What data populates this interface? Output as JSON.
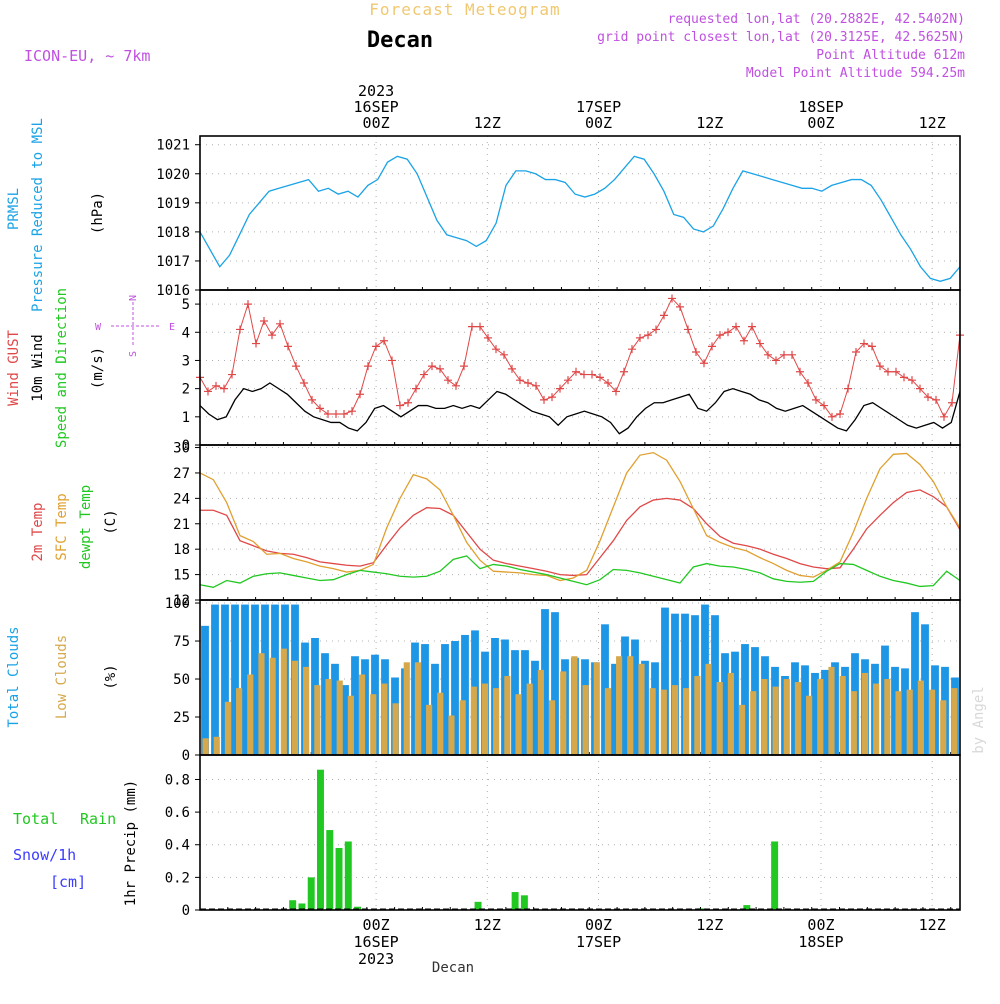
{
  "header": {
    "title": "Forecast Meteogram",
    "location": "Decan",
    "model": "ICON-EU, ~ 7km",
    "requested": "requested lon,lat (20.2882E, 42.5402N)",
    "gridpoint": "grid point closest lon,lat (20.3125E, 42.5625N)",
    "point_alt": "Point Altitude 612m",
    "model_alt": "Model Point Altitude 594.25m",
    "bottom_label": "Decan",
    "credit": "by Angel"
  },
  "colors": {
    "pressure": "#1aa3e6",
    "gust": "#e04848",
    "wind": "#000000",
    "temp2m": "#e04848",
    "sfc": "#e0a030",
    "dew": "#22c822",
    "total_cloud": "#1e96e6",
    "low_cloud": "#d6a84c",
    "rain": "#22c822",
    "snow": "#3c3cff",
    "purple": "#c050e0"
  },
  "chart_data": {
    "type": "meteogram",
    "time": {
      "start_hour": -19,
      "end_hour": 63,
      "step_hours": 1,
      "top_ticks": [
        {
          "hour": 0,
          "lines": [
            "2023",
            "16SEP",
            "00Z"
          ]
        },
        {
          "hour": 12,
          "lines": [
            "12Z"
          ]
        },
        {
          "hour": 24,
          "lines": [
            "17SEP",
            "00Z"
          ]
        },
        {
          "hour": 36,
          "lines": [
            "12Z"
          ]
        },
        {
          "hour": 48,
          "lines": [
            "18SEP",
            "00Z"
          ]
        },
        {
          "hour": 60,
          "lines": [
            "12Z"
          ]
        }
      ],
      "bottom_ticks": [
        {
          "hour": 0,
          "lines": [
            "00Z",
            "16SEP",
            "2023"
          ]
        },
        {
          "hour": 12,
          "lines": [
            "12Z"
          ]
        },
        {
          "hour": 24,
          "lines": [
            "00Z",
            "17SEP"
          ]
        },
        {
          "hour": 36,
          "lines": [
            "12Z"
          ]
        },
        {
          "hour": 48,
          "lines": [
            "00Z",
            "18SEP"
          ]
        },
        {
          "hour": 60,
          "lines": [
            "12Z"
          ]
        }
      ]
    },
    "panels": [
      {
        "id": "pressure",
        "type": "line",
        "labels": [
          "PRMSL",
          "Pressure Reduced to MSL"
        ],
        "unit": "(hPa)",
        "ylim": [
          1016,
          1021.3
        ],
        "yticks": [
          1016,
          1017,
          1018,
          1019,
          1020,
          1021
        ],
        "series": [
          {
            "values": [
              1018.0,
              1017.4,
              1016.8,
              1017.2,
              1017.9,
              1018.6,
              1019.0,
              1019.4,
              1019.5,
              1019.6,
              1019.7,
              1019.8,
              1019.4,
              1019.5,
              1019.3,
              1019.4,
              1019.2,
              1019.6,
              1019.8,
              1020.4,
              1020.6,
              1020.5,
              1020.0,
              1019.2,
              1018.4,
              1017.9,
              1017.8,
              1017.7,
              1017.5,
              1017.7,
              1018.3,
              1019.6,
              1020.1,
              1020.1,
              1020.0,
              1019.8,
              1019.8,
              1019.7,
              1019.3,
              1019.2,
              1019.3,
              1019.5,
              1019.8,
              1020.2,
              1020.6,
              1020.5,
              1020.0,
              1019.4,
              1018.6,
              1018.5,
              1018.1,
              1018.0,
              1018.2,
              1018.8,
              1019.5,
              1020.1,
              1020.0,
              1019.9,
              1019.8,
              1019.7,
              1019.6,
              1019.5,
              1019.5,
              1019.4,
              1019.6,
              1019.7,
              1019.8,
              1019.8,
              1019.6,
              1019.1,
              1018.5,
              1017.9,
              1017.4,
              1016.8,
              1016.4,
              1016.3,
              1016.4,
              1016.8
            ]
          }
        ]
      },
      {
        "id": "wind",
        "type": "line",
        "labels": [
          "Wind GUST",
          "10m Wind",
          "Speed and Direction"
        ],
        "unit": "(m/s)",
        "compass": {
          "n": "N",
          "s": "S",
          "w": "W",
          "e": "E"
        },
        "ylim": [
          0,
          5.5
        ],
        "yticks": [
          0,
          1,
          2,
          3,
          4,
          5
        ],
        "series": [
          {
            "name": "Wind GUST",
            "marker": "+",
            "values": [
              2.4,
              1.9,
              2.1,
              2.0,
              2.5,
              4.1,
              5.0,
              3.6,
              4.4,
              3.9,
              4.3,
              3.5,
              2.8,
              2.2,
              1.6,
              1.3,
              1.1,
              1.1,
              1.1,
              1.2,
              1.8,
              2.8,
              3.5,
              3.7,
              3.0,
              1.4,
              1.5,
              2.0,
              2.5,
              2.8,
              2.7,
              2.3,
              2.1,
              2.8,
              4.2,
              4.2,
              3.8,
              3.4,
              3.2,
              2.7,
              2.3,
              2.2,
              2.1,
              1.6,
              1.7,
              2.0,
              2.3,
              2.6,
              2.5,
              2.5,
              2.4,
              2.2,
              1.9,
              2.6,
              3.4,
              3.8,
              3.9,
              4.1,
              4.6,
              5.2,
              4.9,
              4.1,
              3.3,
              2.9,
              3.5,
              3.9,
              4.0,
              4.2,
              3.7,
              4.2,
              3.6,
              3.2,
              3.0,
              3.2,
              3.2,
              2.6,
              2.2,
              1.6,
              1.4,
              1.0,
              1.1,
              2.0,
              3.3,
              3.6,
              3.5,
              2.8,
              2.6,
              2.6,
              2.4,
              2.3,
              2.0,
              1.7,
              1.6,
              1.0,
              1.5,
              3.9
            ]
          },
          {
            "name": "10m Wind",
            "values": [
              1.4,
              1.1,
              0.9,
              1.0,
              1.6,
              2.0,
              1.9,
              2.0,
              2.2,
              2.0,
              1.8,
              1.5,
              1.2,
              1.0,
              0.9,
              0.8,
              0.8,
              0.6,
              0.5,
              0.8,
              1.3,
              1.4,
              1.2,
              1.0,
              1.2,
              1.4,
              1.4,
              1.3,
              1.3,
              1.4,
              1.3,
              1.4,
              1.3,
              1.6,
              1.9,
              1.8,
              1.6,
              1.4,
              1.2,
              1.1,
              1.0,
              0.7,
              1.0,
              1.1,
              1.2,
              1.1,
              1.0,
              0.8,
              0.4,
              0.6,
              1.0,
              1.3,
              1.5,
              1.5,
              1.6,
              1.7,
              1.8,
              1.3,
              1.2,
              1.5,
              1.9,
              2.0,
              1.9,
              1.8,
              1.6,
              1.5,
              1.3,
              1.2,
              1.3,
              1.4,
              1.2,
              1.0,
              0.8,
              0.6,
              0.5,
              0.9,
              1.4,
              1.5,
              1.3,
              1.1,
              0.9,
              0.7,
              0.6,
              0.7,
              0.8,
              0.6,
              0.8,
              1.9
            ]
          }
        ]
      },
      {
        "id": "temperature",
        "type": "line",
        "labels": [
          "2m Temp",
          "SFC Temp",
          "dewpt Temp"
        ],
        "unit": "(C)",
        "ylim": [
          12,
          30.3
        ],
        "yticks": [
          12,
          15,
          18,
          21,
          24,
          27,
          30
        ],
        "series": [
          {
            "name": "2m Temp",
            "values": [
              22.6,
              22.6,
              22.0,
              19.0,
              18.4,
              17.8,
              17.5,
              17.4,
              17.0,
              16.5,
              16.3,
              16.1,
              16.0,
              16.4,
              18.5,
              20.5,
              22.0,
              22.9,
              22.8,
              22.0,
              20.0,
              18.0,
              16.7,
              16.3,
              16.0,
              15.7,
              15.4,
              15.0,
              14.9,
              15.0,
              17.0,
              19.0,
              21.4,
              23.0,
              23.8,
              24.0,
              23.8,
              22.8,
              21.0,
              19.5,
              18.7,
              18.4,
              18.0,
              17.4,
              16.9,
              16.3,
              15.9,
              15.7,
              15.8,
              18.0,
              20.4,
              22.0,
              23.5,
              24.7,
              25.0,
              24.2,
              23.0,
              20.3
            ]
          },
          {
            "name": "SFC Temp",
            "values": [
              27.0,
              26.2,
              23.5,
              19.6,
              18.9,
              17.4,
              17.5,
              16.9,
              16.5,
              16.0,
              15.7,
              15.3,
              15.5,
              16.2,
              20.5,
              24.0,
              26.8,
              26.3,
              25.0,
              22.0,
              18.8,
              16.7,
              15.4,
              15.3,
              15.2,
              15.0,
              14.9,
              14.3,
              14.6,
              15.5,
              19.0,
              23.0,
              27.0,
              29.1,
              29.4,
              28.5,
              26.0,
              22.8,
              19.6,
              18.8,
              18.2,
              17.8,
              17.0,
              16.3,
              15.5,
              14.9,
              14.7,
              15.5,
              16.5,
              20.0,
              24.0,
              27.5,
              29.2,
              29.3,
              28.0,
              26.0,
              23.0,
              20.5
            ]
          },
          {
            "name": "dewpt Temp",
            "values": [
              13.8,
              13.5,
              14.3,
              14.0,
              14.8,
              15.1,
              15.2,
              14.9,
              14.6,
              14.3,
              14.4,
              15.0,
              15.5,
              15.3,
              15.1,
              14.8,
              14.7,
              14.8,
              15.4,
              16.8,
              17.2,
              15.7,
              16.2,
              16.0,
              15.6,
              15.3,
              15.0,
              14.6,
              14.2,
              13.8,
              14.4,
              15.6,
              15.5,
              15.2,
              14.8,
              14.4,
              14.0,
              15.9,
              16.3,
              16.0,
              15.9,
              15.6,
              15.2,
              14.5,
              14.2,
              14.1,
              14.2,
              15.4,
              16.3,
              16.2,
              15.5,
              14.8,
              14.3,
              14.0,
              13.6,
              13.7,
              15.4,
              14.3
            ]
          }
        ]
      },
      {
        "id": "clouds",
        "type": "bar",
        "labels": [
          "Total Clouds",
          "Low Clouds"
        ],
        "unit": "(%)",
        "ylim": [
          0,
          102
        ],
        "yticks": [
          0,
          25,
          50,
          75,
          100
        ],
        "series": [
          {
            "name": "Total Clouds",
            "values": [
              85,
              99,
              99,
              99,
              99,
              99,
              99,
              99,
              99,
              99,
              74,
              77,
              67,
              60,
              46,
              65,
              63,
              66,
              63,
              51,
              57,
              74,
              73,
              60,
              73,
              75,
              79,
              82,
              68,
              77,
              76,
              69,
              69,
              62,
              96,
              94,
              63,
              64,
              63,
              61,
              86,
              60,
              78,
              76,
              62,
              61,
              97,
              93,
              93,
              92,
              99,
              92,
              67,
              68,
              73,
              71,
              65,
              58,
              52,
              61,
              59,
              54,
              56,
              61,
              58,
              67,
              63,
              60,
              72,
              58,
              57,
              94,
              86,
              59,
              58,
              51
            ]
          },
          {
            "name": "Low Clouds",
            "values": [
              11,
              12,
              35,
              44,
              53,
              67,
              64,
              70,
              62,
              58,
              46,
              50,
              49,
              39,
              53,
              40,
              47,
              34,
              61,
              61,
              33,
              41,
              26,
              36,
              45,
              47,
              44,
              52,
              40,
              47,
              56,
              36,
              55,
              65,
              46,
              61,
              44,
              65,
              65,
              60,
              44,
              43,
              46,
              44,
              52,
              60,
              48,
              54,
              33,
              42,
              50,
              45,
              50,
              48,
              39,
              50,
              58,
              52,
              42,
              54,
              47,
              50,
              42,
              43,
              49,
              43,
              36,
              44
            ]
          }
        ]
      },
      {
        "id": "precip",
        "type": "bar",
        "labels": [
          "1hr Precip (mm)"
        ],
        "side_labels": {
          "total": "Total",
          "rain": "Rain",
          "snow": "Snow/1h",
          "cm": "[cm]"
        },
        "ylim": [
          0,
          0.95
        ],
        "yticks": [
          0,
          0.2,
          0.4,
          0.6,
          0.8
        ],
        "bars": [
          {
            "hour": -9,
            "value": 0.06
          },
          {
            "hour": -8,
            "value": 0.04
          },
          {
            "hour": -7,
            "value": 0.2
          },
          {
            "hour": -6,
            "value": 0.86
          },
          {
            "hour": -5,
            "value": 0.49
          },
          {
            "hour": -4,
            "value": 0.38
          },
          {
            "hour": -3,
            "value": 0.42
          },
          {
            "hour": -2,
            "value": 0.02
          },
          {
            "hour": 11,
            "value": 0.05
          },
          {
            "hour": 15,
            "value": 0.11
          },
          {
            "hour": 16,
            "value": 0.09
          },
          {
            "hour": 35,
            "value": 0.01
          },
          {
            "hour": 40,
            "value": 0.03
          },
          {
            "hour": 43,
            "value": 0.42
          }
        ]
      }
    ]
  }
}
